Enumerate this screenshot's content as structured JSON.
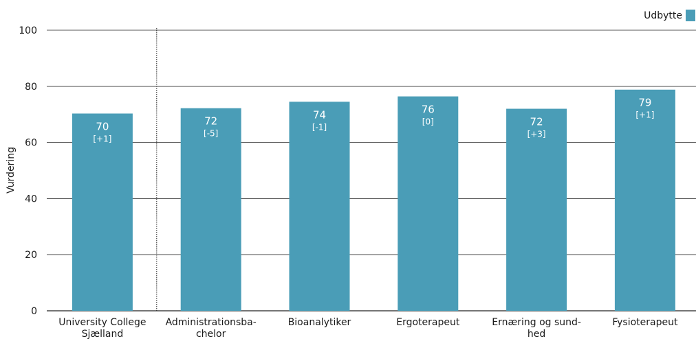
{
  "chart_data": {
    "type": "bar",
    "ylabel": "Vurdering",
    "ylim": [
      0,
      100
    ],
    "yticks": [
      0,
      20,
      40,
      60,
      80,
      100
    ],
    "grid": true,
    "legend_position": "top-right",
    "colors": {
      "bar": "#4a9db7",
      "grid": "#222222"
    },
    "series": [
      {
        "name": "Udbytte",
        "categories": [
          [
            "University College",
            "Sjælland"
          ],
          [
            "Administrationsba-",
            "chelor"
          ],
          [
            "Bioanalytiker"
          ],
          [
            "Ergoterapeut"
          ],
          [
            "Ernæring og sund-",
            "hed"
          ],
          [
            "Fysioterapeut"
          ]
        ],
        "values": [
          70.3,
          72.2,
          74.5,
          76.4,
          72,
          78.8
        ],
        "value_labels": [
          "70",
          "72",
          "74",
          "76",
          "72",
          "79"
        ],
        "change_labels": [
          "[+1]",
          "[-5]",
          "[-1]",
          "[0]",
          "[+3]",
          "[+1]"
        ]
      }
    ]
  }
}
